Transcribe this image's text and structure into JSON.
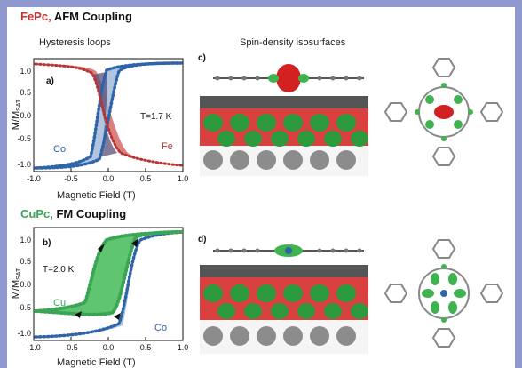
{
  "colors": {
    "frame": "#8f99cf",
    "fe_red": "#c8302f",
    "co_blue": "#2f64a8",
    "cu_green": "#3aa655",
    "fill_red": "#d66a66",
    "fill_blue": "#9db7da",
    "fill_green": "#4fbf62"
  },
  "top": {
    "title_material": "FePc,",
    "title_coupling": "AFM Coupling",
    "hysteresis_label": "Hysteresis loops",
    "spin_label": "Spin-density isosurfaces",
    "panel_plot": "a)",
    "panel_struct": "c)",
    "temperature": "T=1.7 K",
    "label_co": "Co",
    "label_fe": "Fe"
  },
  "bottom": {
    "title_material": "CuPc,",
    "title_coupling": "FM Coupling",
    "panel_plot": "b)",
    "panel_struct": "d)",
    "temperature": "T=2.0 K",
    "label_cu": "Cu",
    "label_co": "Co"
  },
  "axes": {
    "xlabel": "Magnetic Field (T)",
    "ylabel_main": "M/M",
    "ylabel_sub": "SAT",
    "xticks": [
      "-1.0",
      "-0.5",
      "0.0",
      "0.5",
      "1.0"
    ],
    "yticks": [
      "1.0",
      "0.5",
      "0.0",
      "-0.5",
      "-1.0"
    ]
  },
  "chart_data": [
    {
      "type": "line",
      "title": "Hysteresis loops",
      "xlabel": "Magnetic Field (T)",
      "ylabel": "M/MSAT",
      "xlim": [
        -1.0,
        1.0
      ],
      "ylim": [
        -1.1,
        1.1
      ],
      "series": [
        {
          "name": "Co",
          "x": [
            -1.0,
            -0.8,
            -0.6,
            -0.4,
            -0.3,
            -0.2,
            -0.1,
            0.0,
            0.1,
            0.2,
            0.3,
            0.4,
            0.6,
            0.8,
            1.0
          ],
          "y": [
            -1.0,
            -0.98,
            -0.95,
            -0.85,
            -0.8,
            -0.75,
            -0.7,
            -0.2,
            0.6,
            0.8,
            0.85,
            0.9,
            0.95,
            0.98,
            1.0
          ]
        },
        {
          "name": "Fe",
          "x": [
            -1.0,
            -0.8,
            -0.6,
            -0.4,
            -0.3,
            -0.2,
            0.0,
            0.2,
            0.3,
            0.4,
            0.5,
            0.6,
            0.8,
            1.0
          ],
          "y": [
            1.0,
            0.95,
            0.85,
            0.7,
            0.6,
            0.3,
            0.0,
            -0.3,
            -0.55,
            -0.7,
            -0.78,
            -0.85,
            -0.92,
            -0.95
          ]
        }
      ]
    },
    {
      "type": "line",
      "xlabel": "Magnetic Field (T)",
      "ylabel": "M/MSAT",
      "xlim": [
        -1.0,
        1.0
      ],
      "ylim": [
        -1.1,
        1.1
      ],
      "series": [
        {
          "name": "Cu",
          "x": [
            -1.0,
            -0.8,
            -0.6,
            -0.5,
            -0.4,
            -0.3,
            -0.2,
            -0.1,
            0.0,
            0.1,
            0.2,
            0.3,
            0.4,
            0.6,
            0.8,
            1.0
          ],
          "y": [
            -0.6,
            -0.58,
            -0.55,
            -0.5,
            -0.45,
            -0.2,
            0.2,
            0.55,
            0.75,
            0.85,
            0.9,
            0.95,
            0.97,
            0.99,
            1.0,
            1.0
          ]
        },
        {
          "name": "Co",
          "x": [
            -1.0,
            -0.8,
            -0.6,
            -0.4,
            -0.2,
            0.0,
            0.2,
            0.3,
            0.4,
            0.6,
            0.8,
            1.0
          ],
          "y": [
            -1.0,
            -0.99,
            -0.98,
            -0.95,
            -0.9,
            -0.8,
            -0.5,
            0.4,
            0.9,
            0.98,
            1.0,
            1.0
          ]
        }
      ]
    }
  ]
}
